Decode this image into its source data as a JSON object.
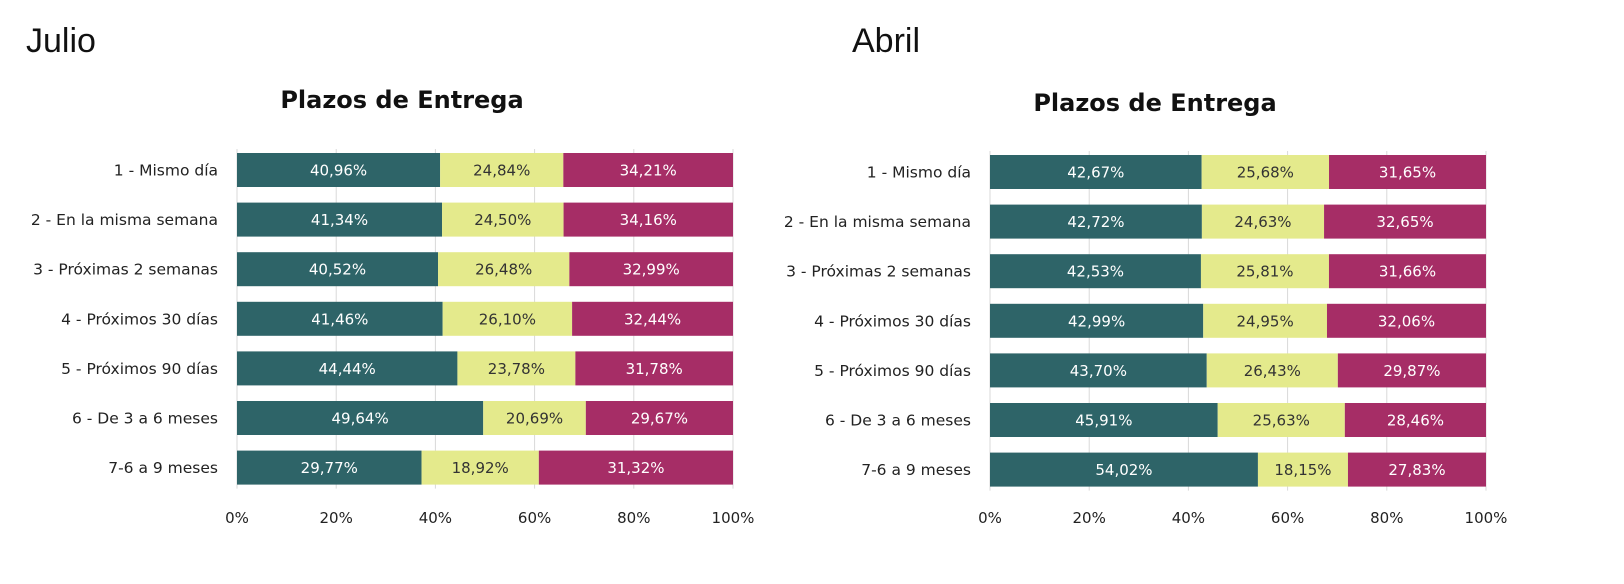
{
  "colors": {
    "s1": "#2e6468",
    "s2": "#e4ea8c",
    "s3": "#a62d66",
    "label_light": "#ffffff",
    "label_dark": "#333333",
    "grid": "#d9d9d9"
  },
  "chart_data": [
    {
      "type": "bar",
      "orientation": "horizontal",
      "stacked": true,
      "panel_label": "Julio",
      "title": "Plazos de Entrega",
      "categories": [
        "1 - Mismo día",
        "2 - En la misma semana",
        "3 - Próximas 2 semanas",
        "4 - Próximos 30 días",
        "5 - Próximos 90 días",
        "6 - De 3 a 6 meses",
        "7-6 a 9 meses"
      ],
      "series": [
        {
          "values": [
            40.96,
            41.34,
            40.52,
            41.46,
            44.44,
            49.64,
            29.77
          ],
          "labels": [
            "40,96%",
            "41,34%",
            "40,52%",
            "41,46%",
            "44,44%",
            "49,64%",
            "29,77%"
          ]
        },
        {
          "values": [
            24.84,
            24.5,
            26.48,
            26.1,
            23.78,
            20.69,
            18.92
          ],
          "labels": [
            "24,84%",
            "24,50%",
            "26,48%",
            "26,10%",
            "23,78%",
            "20,69%",
            "18,92%"
          ]
        },
        {
          "values": [
            34.21,
            34.16,
            32.99,
            32.44,
            31.78,
            29.67,
            31.32
          ],
          "labels": [
            "34,21%",
            "34,16%",
            "32,99%",
            "32,44%",
            "31,78%",
            "29,67%",
            "31,32%"
          ]
        }
      ],
      "xlim": [
        0,
        100
      ],
      "x_ticks": [
        "0%",
        "20%",
        "40%",
        "60%",
        "80%",
        "100%"
      ],
      "grid": true,
      "legend": "none"
    },
    {
      "type": "bar",
      "orientation": "horizontal",
      "stacked": true,
      "panel_label": "Abril",
      "title": "Plazos de Entrega",
      "categories": [
        "1 - Mismo día",
        "2 - En la misma semana",
        "3 - Próximas 2 semanas",
        "4 - Próximos 30 días",
        "5 - Próximos 90 días",
        "6 - De 3 a 6 meses",
        "7-6 a 9 meses"
      ],
      "series": [
        {
          "values": [
            42.67,
            42.72,
            42.53,
            42.99,
            43.7,
            45.91,
            54.02
          ],
          "labels": [
            "42,67%",
            "42,72%",
            "42,53%",
            "42,99%",
            "43,70%",
            "45,91%",
            "54,02%"
          ]
        },
        {
          "values": [
            25.68,
            24.63,
            25.81,
            24.95,
            26.43,
            25.63,
            18.15
          ],
          "labels": [
            "25,68%",
            "24,63%",
            "25,81%",
            "24,95%",
            "26,43%",
            "25,63%",
            "18,15%"
          ]
        },
        {
          "values": [
            31.65,
            32.65,
            31.66,
            32.06,
            29.87,
            28.46,
            27.83
          ],
          "labels": [
            "31,65%",
            "32,65%",
            "31,66%",
            "32,06%",
            "29,87%",
            "28,46%",
            "27,83%"
          ]
        }
      ],
      "xlim": [
        0,
        100
      ],
      "x_ticks": [
        "0%",
        "20%",
        "40%",
        "60%",
        "80%",
        "100%"
      ],
      "grid": true,
      "legend": "none"
    }
  ]
}
